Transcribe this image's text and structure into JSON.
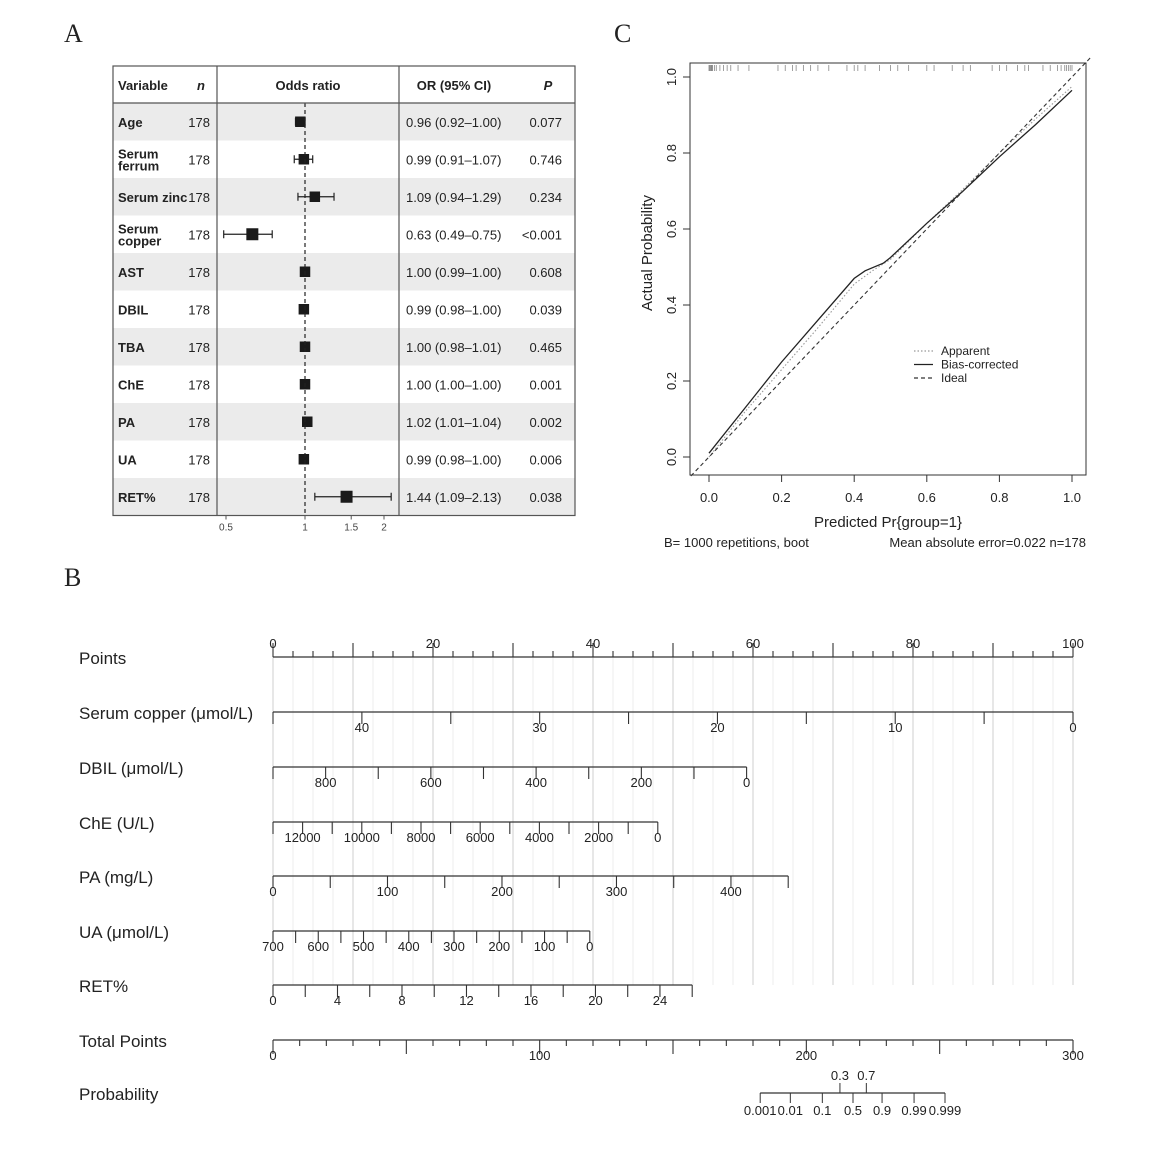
{
  "panels": {
    "A": "A",
    "B": "B",
    "C": "C"
  },
  "chart_data": [
    {
      "type": "forest",
      "panel": "A",
      "headers": {
        "variable": "Variable",
        "n": "n",
        "plot": "Odds ratio",
        "ci": "OR (95% CI)",
        "p": "P"
      },
      "axis_ticks": [
        {
          "v": 0.5,
          "label": "0.5"
        },
        {
          "v": 1,
          "label": "1"
        },
        {
          "v": 1.5,
          "label": "1.5"
        },
        {
          "v": 2,
          "label": "2"
        }
      ],
      "reference": 1,
      "rows": [
        {
          "variable": [
            "Age"
          ],
          "n": "178",
          "or": 0.96,
          "lo": 0.92,
          "hi": 1.0,
          "ci": "0.96 (0.92–1.00)",
          "p": "0.077"
        },
        {
          "variable": [
            "Serum",
            "ferrum"
          ],
          "n": "178",
          "or": 0.99,
          "lo": 0.91,
          "hi": 1.07,
          "ci": "0.99 (0.91–1.07)",
          "p": "0.746"
        },
        {
          "variable": [
            "Serum zinc"
          ],
          "n": "178",
          "or": 1.09,
          "lo": 0.94,
          "hi": 1.29,
          "ci": "1.09 (0.94–1.29)",
          "p": "0.234"
        },
        {
          "variable": [
            "Serum",
            "copper"
          ],
          "n": "178",
          "or": 0.63,
          "lo": 0.49,
          "hi": 0.75,
          "ci": "0.63 (0.49–0.75)",
          "p": "<0.001"
        },
        {
          "variable": [
            "AST"
          ],
          "n": "178",
          "or": 1.0,
          "lo": 0.99,
          "hi": 1.0,
          "ci": "1.00 (0.99–1.00)",
          "p": "0.608"
        },
        {
          "variable": [
            "DBIL"
          ],
          "n": "178",
          "or": 0.99,
          "lo": 0.98,
          "hi": 1.0,
          "ci": "0.99 (0.98–1.00)",
          "p": "0.039"
        },
        {
          "variable": [
            "TBA"
          ],
          "n": "178",
          "or": 1.0,
          "lo": 0.98,
          "hi": 1.01,
          "ci": "1.00 (0.98–1.01)",
          "p": "0.465"
        },
        {
          "variable": [
            "ChE"
          ],
          "n": "178",
          "or": 1.0,
          "lo": 1.0,
          "hi": 1.0,
          "ci": "1.00 (1.00–1.00)",
          "p": "0.001"
        },
        {
          "variable": [
            "PA"
          ],
          "n": "178",
          "or": 1.02,
          "lo": 1.01,
          "hi": 1.04,
          "ci": "1.02 (1.01–1.04)",
          "p": "0.002"
        },
        {
          "variable": [
            "UA"
          ],
          "n": "178",
          "or": 0.99,
          "lo": 0.98,
          "hi": 1.0,
          "ci": "0.99 (0.98–1.00)",
          "p": "0.006"
        },
        {
          "variable": [
            "RET%"
          ],
          "n": "178",
          "or": 1.44,
          "lo": 1.09,
          "hi": 2.13,
          "ci": "1.44 (1.09–2.13)",
          "p": "0.038"
        }
      ]
    },
    {
      "type": "nomogram",
      "panel": "B",
      "points_range": [
        0,
        100
      ],
      "scales": [
        {
          "label": "Points",
          "kind": "points",
          "from": 0,
          "to": 100,
          "p0": 0,
          "p1": 100,
          "minor": 2.5,
          "major": 10,
          "labels": [
            0,
            20,
            40,
            60,
            80,
            100
          ]
        },
        {
          "label": "Serum copper (μmol/L)",
          "kind": "var",
          "from": 45,
          "to": 0,
          "p0": 0,
          "p1": 100,
          "minor": 5,
          "labels": [
            40,
            30,
            20,
            10,
            0
          ]
        },
        {
          "label": "DBIL (μmol/L)",
          "kind": "var",
          "from": 900,
          "to": 0,
          "p0": 0,
          "p1": 59.2,
          "minor": 100,
          "labels": [
            800,
            600,
            400,
            200,
            0
          ]
        },
        {
          "label": "ChE (U/L)",
          "kind": "var",
          "from": 13000,
          "to": 0,
          "p0": 0,
          "p1": 48.1,
          "minor": 1000,
          "labels": [
            12000,
            10000,
            8000,
            6000,
            4000,
            2000,
            0
          ]
        },
        {
          "label": "PA (mg/L)",
          "kind": "var",
          "from": 0,
          "to": 450,
          "p0": 0,
          "p1": 64.4,
          "minor": 50,
          "labels": [
            0,
            100,
            200,
            300,
            400
          ]
        },
        {
          "label": "UA (μmol/L)",
          "kind": "var",
          "from": 700,
          "to": 0,
          "p0": 0,
          "p1": 39.6,
          "minor": 50,
          "labels": [
            700,
            600,
            500,
            400,
            300,
            200,
            100,
            0
          ]
        },
        {
          "label": "RET%",
          "kind": "var",
          "from": 0,
          "to": 26,
          "p0": 0,
          "p1": 52.4,
          "minor": 2,
          "labels": [
            0,
            4,
            8,
            12,
            16,
            20,
            24
          ]
        },
        {
          "label": "Total Points",
          "kind": "total",
          "from": 0,
          "to": 300,
          "minor": 10,
          "major": 50,
          "labels": [
            0,
            100,
            200,
            300
          ]
        }
      ],
      "probability": {
        "label": "Probability",
        "ticks_below": [
          {
            "v": "0.001",
            "tp": 182.7
          },
          {
            "v": "0.01",
            "tp": 194
          },
          {
            "v": "0.1",
            "tp": 206
          },
          {
            "v": "0.5",
            "tp": 217.5
          },
          {
            "v": "0.9",
            "tp": 228.4
          },
          {
            "v": "0.99",
            "tp": 240.4
          },
          {
            "v": "0.999",
            "tp": 252
          }
        ],
        "ticks_above": [
          {
            "v": "0.3",
            "tp": 212.6
          },
          {
            "v": "0.7",
            "tp": 222.5
          }
        ]
      }
    },
    {
      "type": "line",
      "panel": "C",
      "xlabel": "Predicted Pr{group=1}",
      "ylabel": "Actual Probability",
      "xlim": [
        0,
        1
      ],
      "ylim": [
        0,
        1
      ],
      "x_ticks": [
        "0.0",
        "0.2",
        "0.4",
        "0.6",
        "0.8",
        "1.0"
      ],
      "y_ticks": [
        "0.0",
        "0.2",
        "0.4",
        "0.6",
        "0.8",
        "1.0"
      ],
      "series": [
        {
          "name": "Apparent",
          "style": "dotted",
          "x": [
            0,
            0.1,
            0.2,
            0.3,
            0.4,
            0.45,
            0.5,
            0.6,
            0.7,
            0.8,
            0.9,
            1.0
          ],
          "y": [
            0,
            0.12,
            0.23,
            0.34,
            0.455,
            0.49,
            0.52,
            0.615,
            0.705,
            0.8,
            0.89,
            0.975
          ]
        },
        {
          "name": "Bias-corrected",
          "style": "solid",
          "x": [
            0,
            0.1,
            0.2,
            0.3,
            0.4,
            0.43,
            0.48,
            0.5,
            0.6,
            0.7,
            0.8,
            0.9,
            1.0
          ],
          "y": [
            0.01,
            0.13,
            0.25,
            0.36,
            0.47,
            0.49,
            0.51,
            0.525,
            0.615,
            0.7,
            0.79,
            0.875,
            0.965
          ]
        },
        {
          "name": "Ideal",
          "style": "dashed",
          "x": [
            -0.05,
            1.05
          ],
          "y": [
            -0.05,
            1.05
          ]
        }
      ],
      "rug": [
        0,
        0.002,
        0.004,
        0.006,
        0.008,
        0.01,
        0.015,
        0.02,
        0.03,
        0.04,
        0.05,
        0.06,
        0.08,
        0.11,
        0.19,
        0.21,
        0.23,
        0.24,
        0.26,
        0.28,
        0.3,
        0.33,
        0.38,
        0.4,
        0.41,
        0.43,
        0.47,
        0.5,
        0.52,
        0.55,
        0.6,
        0.62,
        0.67,
        0.7,
        0.72,
        0.78,
        0.8,
        0.82,
        0.85,
        0.87,
        0.88,
        0.92,
        0.94,
        0.96,
        0.97,
        0.98,
        0.985,
        0.99,
        0.995,
        1.0
      ],
      "legend_position": "center-right",
      "footnote_left": "B= 1000 repetitions, boot",
      "footnote_right": "Mean absolute error=0.022 n=178"
    }
  ]
}
